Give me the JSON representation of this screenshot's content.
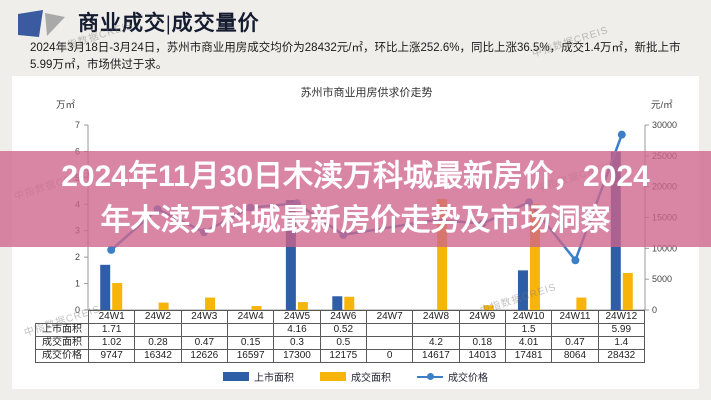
{
  "header": {
    "title": "商业成交|成交量价"
  },
  "description": "2024年3月18日-3月24日，苏州市商业用房成交均价为28432元/㎡，环比上涨252.6%，同比上涨36.5%，成交1.4万㎡，新批上市5.99万㎡，市场供过于求。",
  "overlay": {
    "line1": "2024年11月30日木渎万科城最新房价，2024",
    "line2": "年木渎万科城最新房价走势及市场洞察",
    "color": "#ce648c"
  },
  "watermark": "中指数据CREIS",
  "chart_data": {
    "type": "bar",
    "title": "苏州市商业用房供求价走势",
    "categories": [
      "24W1",
      "24W2",
      "24W3",
      "24W4",
      "24W5",
      "24W6",
      "24W7",
      "24W8",
      "24W9",
      "24W10",
      "24W11",
      "24W12"
    ],
    "series": [
      {
        "name": "上市面积",
        "type": "bar",
        "axis": "left",
        "color": "#2e5ea6",
        "values": [
          1.71,
          null,
          null,
          null,
          4.16,
          0.52,
          null,
          null,
          null,
          1.5,
          null,
          5.99
        ]
      },
      {
        "name": "成交面积",
        "type": "bar",
        "axis": "left",
        "color": "#f7b50c",
        "values": [
          1.02,
          0.28,
          0.47,
          0.15,
          0.3,
          0.5,
          null,
          4.2,
          0.18,
          4.01,
          0.47,
          1.4
        ]
      },
      {
        "name": "成交价格",
        "type": "line",
        "axis": "right",
        "color": "#3d7fc6",
        "values": [
          9747,
          16342,
          12626,
          16597,
          17300,
          12175,
          0,
          14617,
          14013,
          17481,
          8064,
          28432
        ]
      }
    ],
    "left_axis": {
      "label": "万㎡",
      "min": 0,
      "max": 7,
      "ticks": [
        0,
        1,
        2,
        3,
        4,
        5,
        6,
        7
      ]
    },
    "right_axis": {
      "label": "元/㎡",
      "min": 0,
      "max": 30000,
      "ticks": [
        0,
        5000,
        10000,
        15000,
        20000,
        25000,
        30000
      ]
    },
    "legend_position": "bottom",
    "grid": false
  },
  "table": {
    "row_labels": [
      "上市面积",
      "成交面积",
      "成交价格"
    ],
    "columns": [
      "24W1",
      "24W2",
      "24W3",
      "24W4",
      "24W5",
      "24W6",
      "24W7",
      "24W8",
      "24W9",
      "24W10",
      "24W11",
      "24W12"
    ],
    "rows": [
      [
        "1.71",
        "",
        "",
        "",
        "4.16",
        "0.52",
        "",
        "",
        "",
        "1.5",
        "",
        "5.99"
      ],
      [
        "1.02",
        "0.28",
        "0.47",
        "0.15",
        "0.3",
        "0.5",
        "",
        "4.2",
        "0.18",
        "4.01",
        "0.47",
        "1.4"
      ],
      [
        "9747",
        "16342",
        "12626",
        "16597",
        "17300",
        "12175",
        "0",
        "14617",
        "14013",
        "17481",
        "8064",
        "28432"
      ]
    ]
  }
}
